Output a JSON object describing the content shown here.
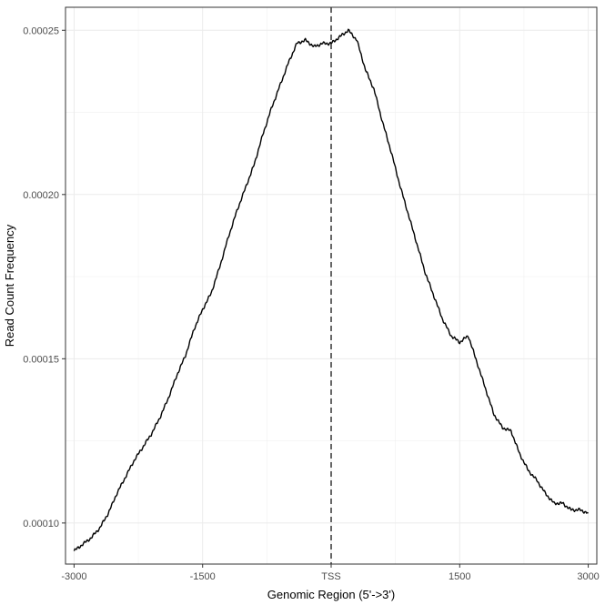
{
  "chart_data": {
    "type": "line",
    "title": "",
    "xlabel": "Genomic Region (5'->3')",
    "ylabel": "Read Count Frequency",
    "xlim": [
      -3100,
      3100
    ],
    "ylim": [
      8.75e-05,
      0.000257
    ],
    "x_ticks": [
      {
        "value": -3000,
        "label": "-3000"
      },
      {
        "value": -1500,
        "label": "-1500"
      },
      {
        "value": 0,
        "label": "TSS"
      },
      {
        "value": 1500,
        "label": "1500"
      },
      {
        "value": 3000,
        "label": "3000"
      }
    ],
    "y_ticks": [
      {
        "value": 0.0001,
        "label": "0.00010"
      },
      {
        "value": 0.00015,
        "label": "0.00015"
      },
      {
        "value": 0.0002,
        "label": "0.00020"
      },
      {
        "value": 0.00025,
        "label": "0.00025"
      }
    ],
    "grid": true,
    "reference_line": {
      "x": 0,
      "style": "dashed"
    },
    "series": [
      {
        "color": "#000000",
        "x": [
          -3000,
          -2900,
          -2800,
          -2700,
          -2600,
          -2500,
          -2400,
          -2300,
          -2200,
          -2100,
          -2000,
          -1900,
          -1800,
          -1700,
          -1600,
          -1500,
          -1400,
          -1300,
          -1200,
          -1100,
          -1000,
          -900,
          -800,
          -700,
          -600,
          -500,
          -400,
          -300,
          -200,
          -100,
          0,
          100,
          200,
          300,
          400,
          500,
          600,
          700,
          800,
          900,
          1000,
          1100,
          1200,
          1300,
          1400,
          1500,
          1600,
          1700,
          1800,
          1900,
          2000,
          2100,
          2200,
          2300,
          2400,
          2500,
          2600,
          2700,
          2800,
          2900,
          3000
        ],
        "y": [
          9.15e-05,
          9.35e-05,
          9.55e-05,
          9.85e-05,
          0.000103,
          0.000109,
          0.000114,
          0.000119,
          0.000123,
          0.000127,
          0.000132,
          0.000138,
          0.000145,
          0.000151,
          0.000159,
          0.000165,
          0.00017,
          0.000178,
          0.000187,
          0.000195,
          0.000202,
          0.000209,
          0.000218,
          0.000226,
          0.000233,
          0.00024,
          0.000246,
          0.000247,
          0.000245,
          0.000246,
          0.000246,
          0.000248,
          0.00025,
          0.000247,
          0.000238,
          0.000232,
          0.000222,
          0.000213,
          0.000203,
          0.000194,
          0.000185,
          0.000176,
          0.000169,
          0.000162,
          0.000157,
          0.000155,
          0.000157,
          0.000149,
          0.000141,
          0.000133,
          0.000129,
          0.000128,
          0.000121,
          0.000116,
          0.000113,
          0.000109,
          0.000106,
          0.000106,
          0.000104,
          0.000104,
          0.000103
        ]
      }
    ]
  }
}
